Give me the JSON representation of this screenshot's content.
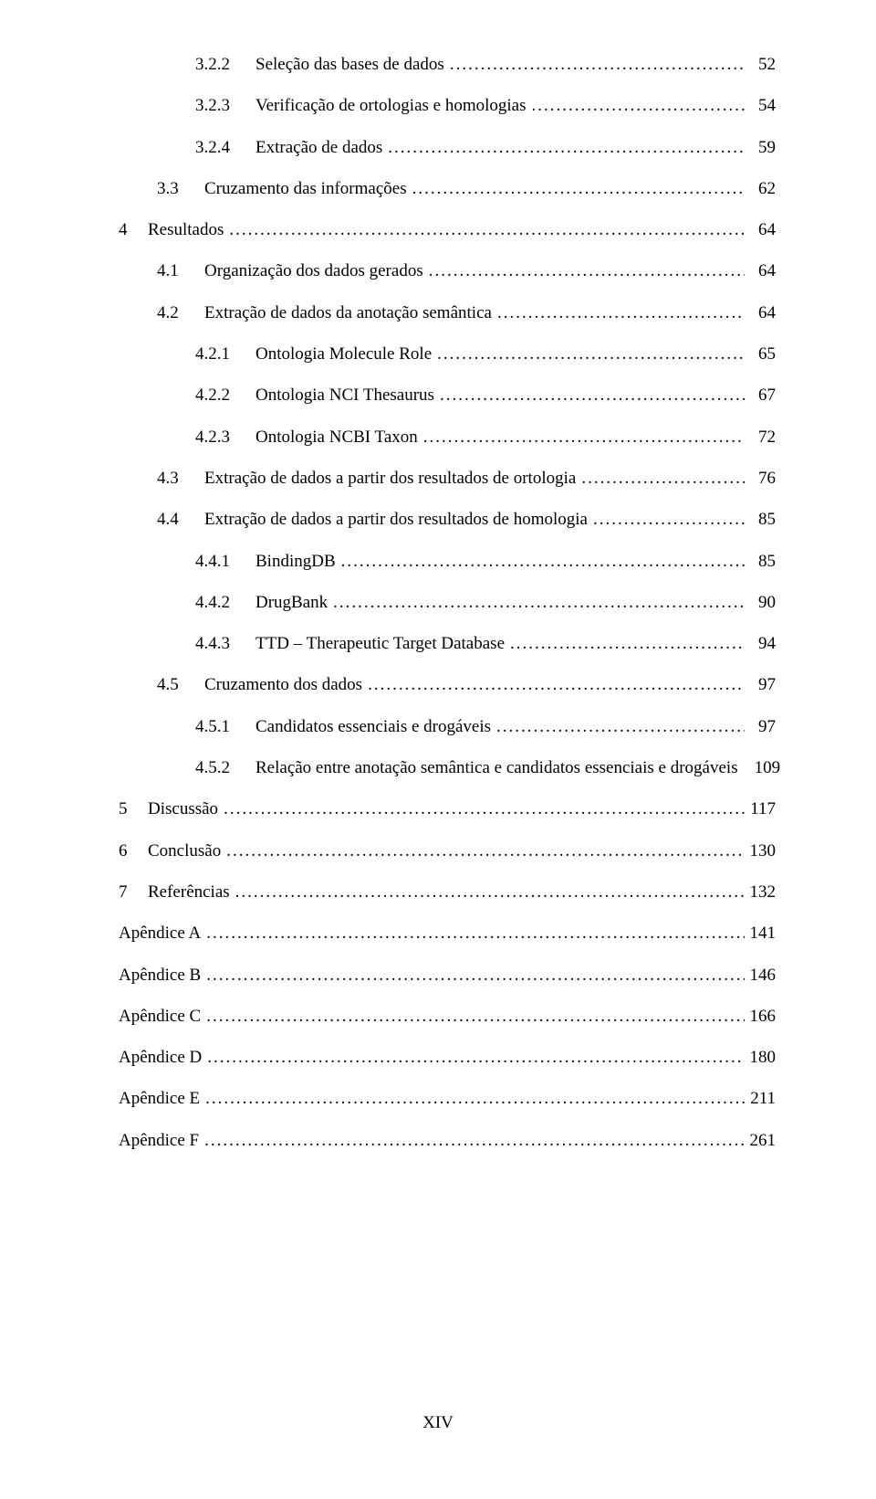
{
  "page_number": "XIV",
  "toc": [
    {
      "indent": 2,
      "num": "3.2.2",
      "numw": "w3",
      "title": "Seleção das bases de dados",
      "page": "52"
    },
    {
      "indent": 2,
      "num": "3.2.3",
      "numw": "w3",
      "title": "Verificação de ortologias e homologias",
      "page": "54"
    },
    {
      "indent": 2,
      "num": "3.2.4",
      "numw": "w3",
      "title": "Extração de dados",
      "page": "59"
    },
    {
      "indent": 1,
      "num": "3.3",
      "numw": "w2",
      "title": "Cruzamento das informações",
      "page": "62"
    },
    {
      "indent": 0,
      "num": "4",
      "numw": "w1",
      "title": "Resultados",
      "page": "64"
    },
    {
      "indent": 1,
      "num": "4.1",
      "numw": "w2",
      "title": "Organização dos dados gerados",
      "page": "64"
    },
    {
      "indent": 1,
      "num": "4.2",
      "numw": "w2",
      "title": "Extração de dados da anotação semântica",
      "page": "64"
    },
    {
      "indent": 2,
      "num": "4.2.1",
      "numw": "w3",
      "title": "Ontologia Molecule Role",
      "page": "65"
    },
    {
      "indent": 2,
      "num": "4.2.2",
      "numw": "w3",
      "title": "Ontologia NCI Thesaurus",
      "page": "67"
    },
    {
      "indent": 2,
      "num": "4.2.3",
      "numw": "w3",
      "title": "Ontologia NCBI Taxon",
      "page": "72"
    },
    {
      "indent": 1,
      "num": "4.3",
      "numw": "w2",
      "title": "Extração de dados a partir dos resultados de ortologia",
      "page": "76"
    },
    {
      "indent": 1,
      "num": "4.4",
      "numw": "w2",
      "title": "Extração de dados a partir dos resultados de homologia",
      "page": "85"
    },
    {
      "indent": 2,
      "num": "4.4.1",
      "numw": "w3",
      "title": "BindingDB",
      "page": "85"
    },
    {
      "indent": 2,
      "num": "4.4.2",
      "numw": "w3",
      "title": "DrugBank",
      "page": "90"
    },
    {
      "indent": 2,
      "num": "4.4.3",
      "numw": "w3",
      "title": "TTD – Therapeutic Target Database",
      "page": "94"
    },
    {
      "indent": 1,
      "num": "4.5",
      "numw": "w2",
      "title": "Cruzamento dos dados",
      "page": "97"
    },
    {
      "indent": 2,
      "num": "4.5.1",
      "numw": "w3",
      "title": "Candidatos essenciais e drogáveis",
      "page": "97"
    },
    {
      "indent": 2,
      "num": "4.5.2",
      "numw": "w3",
      "title": "Relação entre anotação semântica e candidatos essenciais e drogáveis",
      "page": "109",
      "nodots": true
    },
    {
      "indent": 0,
      "num": "5",
      "numw": "w1",
      "title": "Discussão",
      "page": "117"
    },
    {
      "indent": 0,
      "num": "6",
      "numw": "w1",
      "title": "Conclusão",
      "page": "130"
    },
    {
      "indent": 0,
      "num": "7",
      "numw": "w1",
      "title": "Referências",
      "page": "132"
    },
    {
      "indent": 0,
      "num": "",
      "numw": "",
      "title": "Apêndice A",
      "page": "141"
    },
    {
      "indent": 0,
      "num": "",
      "numw": "",
      "title": "Apêndice B",
      "page": "146"
    },
    {
      "indent": 0,
      "num": "",
      "numw": "",
      "title": "Apêndice C",
      "page": "166"
    },
    {
      "indent": 0,
      "num": "",
      "numw": "",
      "title": "Apêndice D",
      "page": "180"
    },
    {
      "indent": 0,
      "num": "",
      "numw": "",
      "title": "Apêndice E",
      "page": "211"
    },
    {
      "indent": 0,
      "num": "",
      "numw": "",
      "title": "Apêndice F",
      "page": "261"
    }
  ]
}
